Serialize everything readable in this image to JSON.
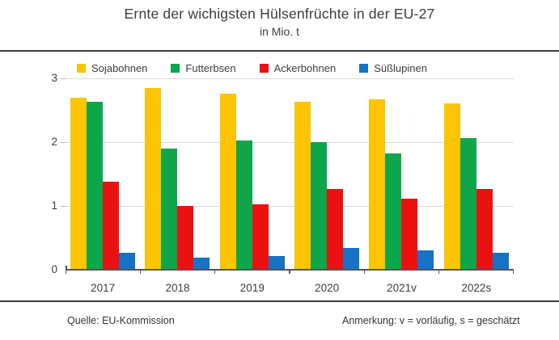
{
  "footer": {
    "source": "Quelle: EU-Kommission",
    "note": "Anmerkung: v = vorläufig, s = geschätzt"
  },
  "chart_data": {
    "type": "bar",
    "title": "Ernte der wichigsten Hülsenfrüchte in der EU-27",
    "subtitle": "in Mio. t",
    "categories": [
      "2017",
      "2018",
      "2019",
      "2020",
      "2021v",
      "2022s"
    ],
    "series": [
      {
        "name": "Sojabohnen",
        "color": "#FCC402",
        "values": [
          2.7,
          2.85,
          2.76,
          2.63,
          2.67,
          2.61
        ]
      },
      {
        "name": "Futterbsen",
        "color": "#0DA64B",
        "values": [
          2.63,
          1.9,
          2.02,
          2.0,
          1.82,
          2.06
        ]
      },
      {
        "name": "Ackerbohnen",
        "color": "#EC1111",
        "values": [
          1.38,
          1.0,
          1.03,
          1.26,
          1.12,
          1.26
        ]
      },
      {
        "name": "Süßlupinen",
        "color": "#1772C4",
        "values": [
          0.26,
          0.19,
          0.21,
          0.34,
          0.31,
          0.26
        ]
      }
    ],
    "xlabel": "",
    "ylabel": "",
    "ylim": [
      0,
      3
    ],
    "yticks": [
      0,
      1,
      2,
      3
    ],
    "grid": true,
    "legend_position": "top"
  }
}
